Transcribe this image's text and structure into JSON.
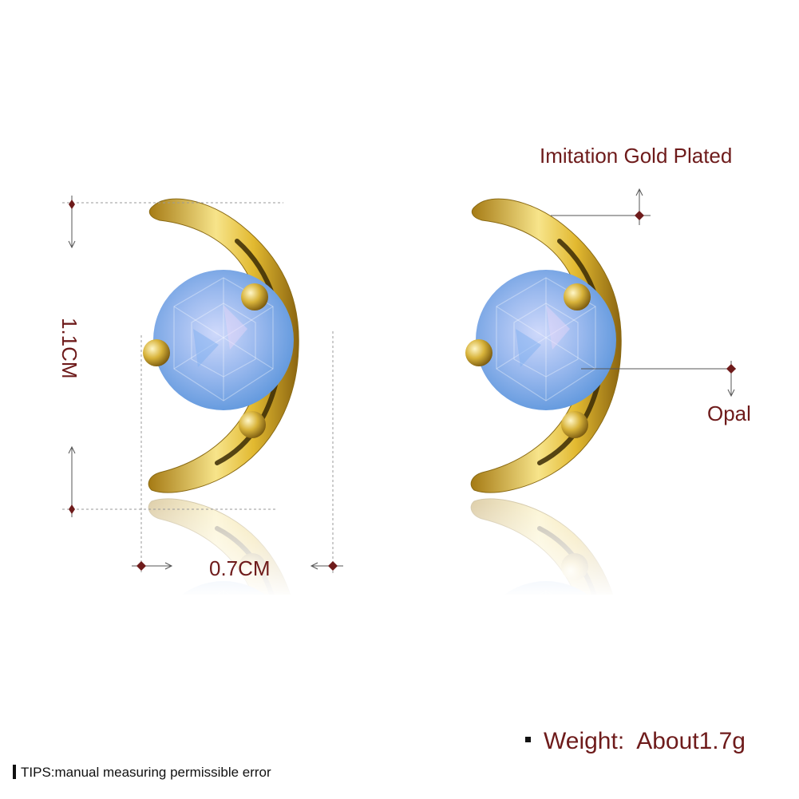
{
  "labels": {
    "material": "Imitation Gold Plated",
    "stone": "Opal",
    "height": "1.1CM",
    "width": "0.7CM",
    "weight_label": "Weight:",
    "weight_value": "About1.7g",
    "tips": "TIPS:manual measuring permissible error"
  },
  "colors": {
    "label_text": "#6e1b1b",
    "gold": "#e9c94a",
    "opal": "#8fb8ea",
    "dimension_line": "#9a9a9a",
    "marker": "#6e1b1b"
  },
  "icons": [
    "diamond-marker-icon",
    "arrow-icon",
    "bullet-square-icon"
  ]
}
